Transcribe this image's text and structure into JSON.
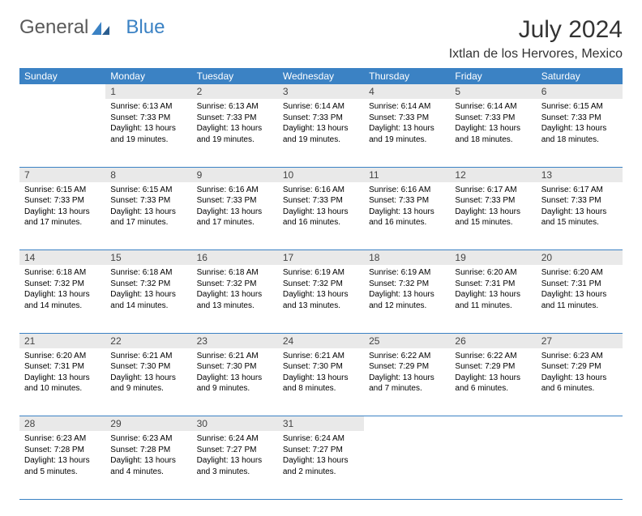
{
  "logo": {
    "part1": "General",
    "part2": "Blue"
  },
  "title": "July 2024",
  "location": "Ixtlan de los Hervores, Mexico",
  "colors": {
    "header_bg": "#3b82c4",
    "header_fg": "#ffffff",
    "daynum_bg": "#e9e9e9",
    "daynum_fg": "#444444",
    "rule": "#3b82c4",
    "text": "#000000",
    "title_color": "#333333",
    "logo_general": "#5a5a5a",
    "logo_blue": "#3b82c4",
    "background": "#ffffff"
  },
  "day_headers": [
    "Sunday",
    "Monday",
    "Tuesday",
    "Wednesday",
    "Thursday",
    "Friday",
    "Saturday"
  ],
  "weeks": [
    [
      {
        "n": "",
        "lines": []
      },
      {
        "n": "1",
        "lines": [
          "Sunrise: 6:13 AM",
          "Sunset: 7:33 PM",
          "Daylight: 13 hours and 19 minutes."
        ]
      },
      {
        "n": "2",
        "lines": [
          "Sunrise: 6:13 AM",
          "Sunset: 7:33 PM",
          "Daylight: 13 hours and 19 minutes."
        ]
      },
      {
        "n": "3",
        "lines": [
          "Sunrise: 6:14 AM",
          "Sunset: 7:33 PM",
          "Daylight: 13 hours and 19 minutes."
        ]
      },
      {
        "n": "4",
        "lines": [
          "Sunrise: 6:14 AM",
          "Sunset: 7:33 PM",
          "Daylight: 13 hours and 19 minutes."
        ]
      },
      {
        "n": "5",
        "lines": [
          "Sunrise: 6:14 AM",
          "Sunset: 7:33 PM",
          "Daylight: 13 hours and 18 minutes."
        ]
      },
      {
        "n": "6",
        "lines": [
          "Sunrise: 6:15 AM",
          "Sunset: 7:33 PM",
          "Daylight: 13 hours and 18 minutes."
        ]
      }
    ],
    [
      {
        "n": "7",
        "lines": [
          "Sunrise: 6:15 AM",
          "Sunset: 7:33 PM",
          "Daylight: 13 hours and 17 minutes."
        ]
      },
      {
        "n": "8",
        "lines": [
          "Sunrise: 6:15 AM",
          "Sunset: 7:33 PM",
          "Daylight: 13 hours and 17 minutes."
        ]
      },
      {
        "n": "9",
        "lines": [
          "Sunrise: 6:16 AM",
          "Sunset: 7:33 PM",
          "Daylight: 13 hours and 17 minutes."
        ]
      },
      {
        "n": "10",
        "lines": [
          "Sunrise: 6:16 AM",
          "Sunset: 7:33 PM",
          "Daylight: 13 hours and 16 minutes."
        ]
      },
      {
        "n": "11",
        "lines": [
          "Sunrise: 6:16 AM",
          "Sunset: 7:33 PM",
          "Daylight: 13 hours and 16 minutes."
        ]
      },
      {
        "n": "12",
        "lines": [
          "Sunrise: 6:17 AM",
          "Sunset: 7:33 PM",
          "Daylight: 13 hours and 15 minutes."
        ]
      },
      {
        "n": "13",
        "lines": [
          "Sunrise: 6:17 AM",
          "Sunset: 7:33 PM",
          "Daylight: 13 hours and 15 minutes."
        ]
      }
    ],
    [
      {
        "n": "14",
        "lines": [
          "Sunrise: 6:18 AM",
          "Sunset: 7:32 PM",
          "Daylight: 13 hours and 14 minutes."
        ]
      },
      {
        "n": "15",
        "lines": [
          "Sunrise: 6:18 AM",
          "Sunset: 7:32 PM",
          "Daylight: 13 hours and 14 minutes."
        ]
      },
      {
        "n": "16",
        "lines": [
          "Sunrise: 6:18 AM",
          "Sunset: 7:32 PM",
          "Daylight: 13 hours and 13 minutes."
        ]
      },
      {
        "n": "17",
        "lines": [
          "Sunrise: 6:19 AM",
          "Sunset: 7:32 PM",
          "Daylight: 13 hours and 13 minutes."
        ]
      },
      {
        "n": "18",
        "lines": [
          "Sunrise: 6:19 AM",
          "Sunset: 7:32 PM",
          "Daylight: 13 hours and 12 minutes."
        ]
      },
      {
        "n": "19",
        "lines": [
          "Sunrise: 6:20 AM",
          "Sunset: 7:31 PM",
          "Daylight: 13 hours and 11 minutes."
        ]
      },
      {
        "n": "20",
        "lines": [
          "Sunrise: 6:20 AM",
          "Sunset: 7:31 PM",
          "Daylight: 13 hours and 11 minutes."
        ]
      }
    ],
    [
      {
        "n": "21",
        "lines": [
          "Sunrise: 6:20 AM",
          "Sunset: 7:31 PM",
          "Daylight: 13 hours and 10 minutes."
        ]
      },
      {
        "n": "22",
        "lines": [
          "Sunrise: 6:21 AM",
          "Sunset: 7:30 PM",
          "Daylight: 13 hours and 9 minutes."
        ]
      },
      {
        "n": "23",
        "lines": [
          "Sunrise: 6:21 AM",
          "Sunset: 7:30 PM",
          "Daylight: 13 hours and 9 minutes."
        ]
      },
      {
        "n": "24",
        "lines": [
          "Sunrise: 6:21 AM",
          "Sunset: 7:30 PM",
          "Daylight: 13 hours and 8 minutes."
        ]
      },
      {
        "n": "25",
        "lines": [
          "Sunrise: 6:22 AM",
          "Sunset: 7:29 PM",
          "Daylight: 13 hours and 7 minutes."
        ]
      },
      {
        "n": "26",
        "lines": [
          "Sunrise: 6:22 AM",
          "Sunset: 7:29 PM",
          "Daylight: 13 hours and 6 minutes."
        ]
      },
      {
        "n": "27",
        "lines": [
          "Sunrise: 6:23 AM",
          "Sunset: 7:29 PM",
          "Daylight: 13 hours and 6 minutes."
        ]
      }
    ],
    [
      {
        "n": "28",
        "lines": [
          "Sunrise: 6:23 AM",
          "Sunset: 7:28 PM",
          "Daylight: 13 hours and 5 minutes."
        ]
      },
      {
        "n": "29",
        "lines": [
          "Sunrise: 6:23 AM",
          "Sunset: 7:28 PM",
          "Daylight: 13 hours and 4 minutes."
        ]
      },
      {
        "n": "30",
        "lines": [
          "Sunrise: 6:24 AM",
          "Sunset: 7:27 PM",
          "Daylight: 13 hours and 3 minutes."
        ]
      },
      {
        "n": "31",
        "lines": [
          "Sunrise: 6:24 AM",
          "Sunset: 7:27 PM",
          "Daylight: 13 hours and 2 minutes."
        ]
      },
      {
        "n": "",
        "lines": []
      },
      {
        "n": "",
        "lines": []
      },
      {
        "n": "",
        "lines": []
      }
    ]
  ]
}
